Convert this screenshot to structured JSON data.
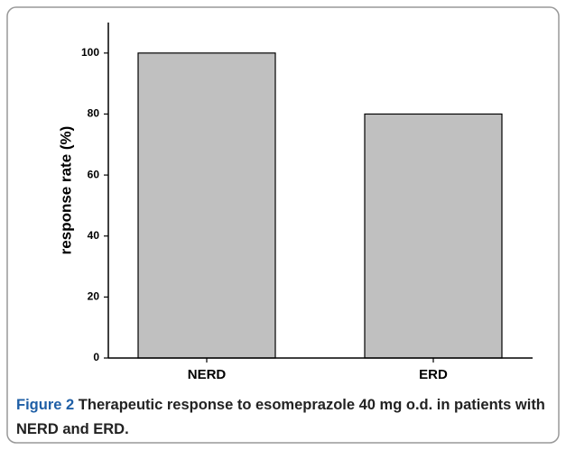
{
  "chart_data": {
    "type": "bar",
    "categories": [
      "NERD",
      "ERD"
    ],
    "values": [
      100,
      80
    ],
    "color": "#c0c0c0",
    "ylabel": "response rate (%)",
    "ylim": [
      0,
      110
    ],
    "yticks": [
      0,
      20,
      40,
      60,
      80,
      100
    ],
    "caption_label": "Figure 2",
    "caption": "Therapeutic response to esomeprazole 40 mg o.d. in patients with NERD and ERD."
  }
}
